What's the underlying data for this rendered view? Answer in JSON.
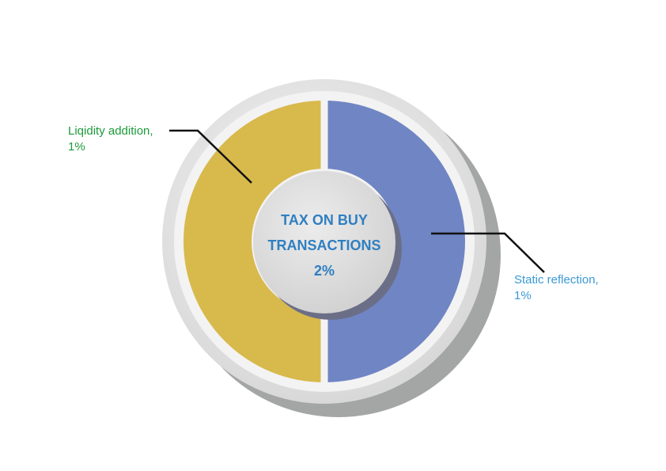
{
  "chart_data": {
    "type": "pie",
    "variant": "donut",
    "center_text": [
      "TAX ON BUY",
      "TRANSACTIONS",
      "2%"
    ],
    "slices": [
      {
        "label": "Liqidity addition,",
        "value_text": "1%",
        "value": 1,
        "color": "#d8b94c",
        "label_color": "#1d9a3a"
      },
      {
        "label": "Static reflection,",
        "value_text": "1%",
        "value": 1,
        "color": "#7085c3",
        "label_color": "#3a9ad6"
      }
    ],
    "colors": {
      "center_text": "#2f7fc1",
      "ring": "#e4e4e4",
      "ring_shadow": "#a4a6a6",
      "hub": "#dcdcdc",
      "leader_line": "#111111"
    }
  }
}
